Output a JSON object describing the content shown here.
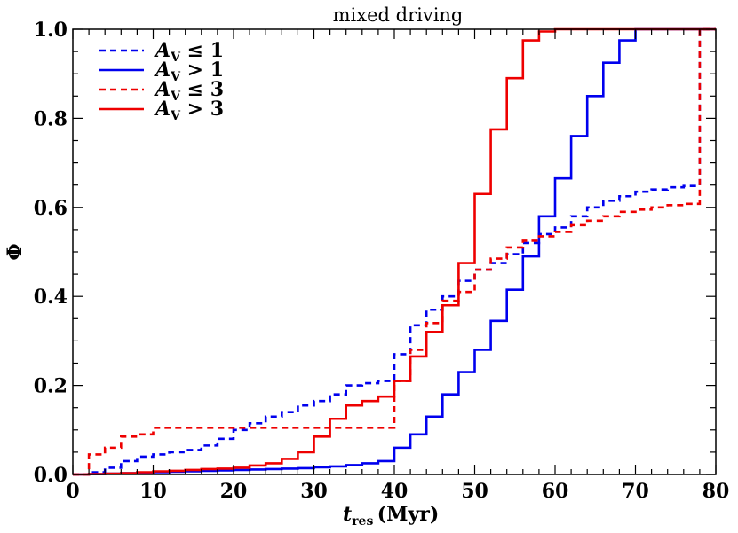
{
  "chart_data": {
    "type": "line",
    "step": true,
    "title": "mixed driving",
    "xlabel": "t",
    "xlabel_sub": "res",
    "xlabel_unit": "(Myr)",
    "ylabel": "Φ",
    "xlim": [
      0,
      80
    ],
    "ylim": [
      0,
      1.0
    ],
    "xticks": [
      0,
      10,
      20,
      30,
      40,
      50,
      60,
      70,
      80
    ],
    "yticks": [
      0.0,
      0.2,
      0.4,
      0.6,
      0.8,
      1.0
    ],
    "ytick_labels": [
      "0.0",
      "0.2",
      "0.4",
      "0.6",
      "0.8",
      "1.0"
    ],
    "grid": false,
    "legend_position": "top-left",
    "series": [
      {
        "name": "A_V ≤ 1",
        "name_main": "A",
        "name_sub": "V",
        "name_rest": " ≤ 1",
        "color": "#0000ee",
        "dash": "dashed",
        "x": [
          0,
          2,
          4,
          6,
          8,
          10,
          12,
          14,
          16,
          18,
          20,
          22,
          24,
          26,
          28,
          30,
          32,
          34,
          36,
          38,
          40,
          42,
          44,
          46,
          48,
          50,
          52,
          54,
          56,
          58,
          60,
          62,
          64,
          66,
          68,
          70,
          72,
          74,
          76,
          78,
          78,
          80
        ],
        "y": [
          0,
          0.005,
          0.015,
          0.03,
          0.04,
          0.045,
          0.05,
          0.055,
          0.065,
          0.08,
          0.1,
          0.115,
          0.13,
          0.14,
          0.155,
          0.165,
          0.18,
          0.2,
          0.205,
          0.21,
          0.27,
          0.335,
          0.37,
          0.4,
          0.435,
          0.46,
          0.475,
          0.495,
          0.52,
          0.54,
          0.555,
          0.58,
          0.6,
          0.615,
          0.625,
          0.635,
          0.64,
          0.645,
          0.648,
          0.65,
          1.0,
          1.0
        ]
      },
      {
        "name": "A_V > 1",
        "name_main": "A",
        "name_sub": "V",
        "name_rest": " > 1",
        "color": "#0000ee",
        "dash": "solid",
        "x": [
          0,
          2,
          4,
          6,
          8,
          10,
          12,
          14,
          16,
          18,
          20,
          22,
          24,
          26,
          28,
          30,
          32,
          34,
          36,
          38,
          40,
          42,
          44,
          46,
          48,
          50,
          52,
          54,
          56,
          58,
          60,
          62,
          64,
          66,
          68,
          70,
          80
        ],
        "y": [
          0,
          0.001,
          0.002,
          0.003,
          0.004,
          0.005,
          0.006,
          0.007,
          0.008,
          0.009,
          0.01,
          0.011,
          0.012,
          0.013,
          0.014,
          0.016,
          0.018,
          0.021,
          0.025,
          0.03,
          0.06,
          0.09,
          0.13,
          0.18,
          0.23,
          0.28,
          0.345,
          0.415,
          0.49,
          0.58,
          0.665,
          0.76,
          0.85,
          0.925,
          0.975,
          1.0,
          1.0
        ]
      },
      {
        "name": "A_V ≤ 3",
        "name_main": "A",
        "name_sub": "V",
        "name_rest": " ≤ 3",
        "color": "#ee0000",
        "dash": "dashed",
        "x": [
          0,
          2,
          4,
          6,
          8,
          10,
          12,
          14,
          16,
          18,
          20,
          22,
          24,
          26,
          28,
          30,
          32,
          34,
          36,
          38,
          40,
          42,
          44,
          46,
          48,
          50,
          52,
          54,
          56,
          58,
          60,
          62,
          64,
          66,
          68,
          70,
          72,
          74,
          76,
          78,
          78,
          80
        ],
        "y": [
          0,
          0.045,
          0.06,
          0.085,
          0.09,
          0.105,
          0.105,
          0.105,
          0.105,
          0.105,
          0.105,
          0.105,
          0.105,
          0.105,
          0.105,
          0.105,
          0.105,
          0.105,
          0.105,
          0.105,
          0.21,
          0.28,
          0.34,
          0.39,
          0.41,
          0.46,
          0.485,
          0.51,
          0.525,
          0.535,
          0.545,
          0.56,
          0.57,
          0.58,
          0.59,
          0.595,
          0.6,
          0.605,
          0.608,
          0.61,
          1.0,
          1.0
        ]
      },
      {
        "name": "A_V > 3",
        "name_main": "A",
        "name_sub": "V",
        "name_rest": " > 3",
        "color": "#ee0000",
        "dash": "solid",
        "x": [
          0,
          2,
          4,
          6,
          8,
          10,
          12,
          14,
          16,
          18,
          20,
          22,
          24,
          26,
          28,
          30,
          32,
          34,
          36,
          38,
          40,
          42,
          44,
          46,
          48,
          50,
          52,
          54,
          56,
          58,
          60,
          80
        ],
        "y": [
          0,
          0.001,
          0.002,
          0.003,
          0.005,
          0.007,
          0.008,
          0.01,
          0.012,
          0.013,
          0.015,
          0.02,
          0.025,
          0.035,
          0.05,
          0.085,
          0.125,
          0.155,
          0.165,
          0.175,
          0.21,
          0.265,
          0.32,
          0.38,
          0.475,
          0.63,
          0.775,
          0.89,
          0.975,
          0.995,
          1.0,
          1.0
        ]
      }
    ]
  }
}
